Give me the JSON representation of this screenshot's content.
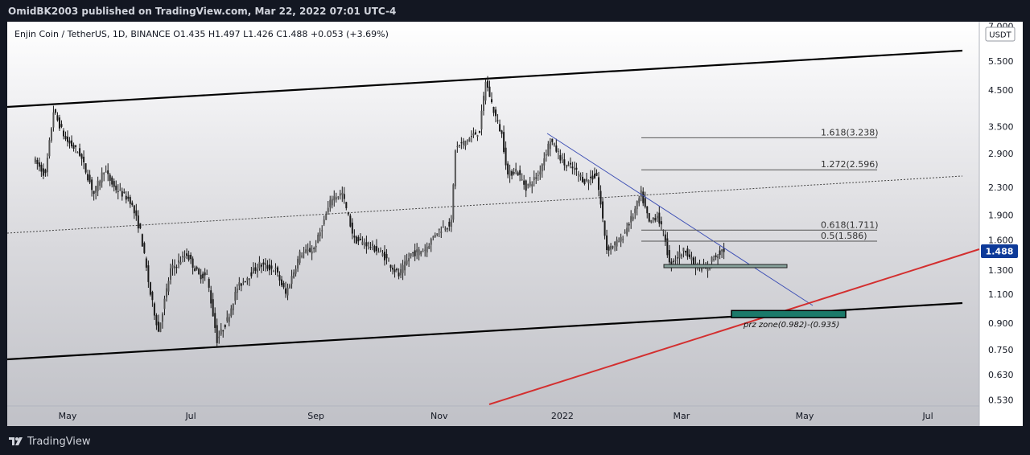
{
  "header": {
    "text": "OmidBK2003 published on TradingView.com, Mar 22, 2022 07:01 UTC-4"
  },
  "footer": {
    "brand": "TradingView"
  },
  "legend": {
    "text": "Enjin Coin / TetherUS, 1D, BINANCE  O1.435  H1.497  L1.426  C1.488  +0.053 (+3.69%)"
  },
  "price_axis": {
    "currency": "USDT",
    "last_price": "1.488"
  },
  "colors": {
    "candle": "#1a1a1a",
    "channel": "#000000",
    "trendline_blue": "#3f51b5",
    "trendline_red": "#d32f2f",
    "zone_green": "#1b7a6a",
    "zone_gray": "#86a09a",
    "last_price_bg": "#0d3a99"
  },
  "chart_data": {
    "type": "candlestick",
    "title": "Enjin Coin / TetherUS, 1D, BINANCE",
    "x_axis_labels": [
      "May",
      "Jul",
      "Sep",
      "Nov",
      "2022",
      "Mar",
      "May",
      "Jul"
    ],
    "y_scale": "log",
    "y_axis_ticks": [
      "7.000",
      "5.500",
      "4.500",
      "3.500",
      "2.900",
      "2.300",
      "1.900",
      "1.600",
      "1.300",
      "1.100",
      "0.900",
      "0.750",
      "0.630",
      "0.530"
    ],
    "ohlc_last": {
      "open": 1.435,
      "high": 1.497,
      "low": 1.426,
      "close": 1.488,
      "change": 0.053,
      "change_pct": 3.69
    },
    "price_anchors": [
      [
        "2021-04-15",
        2.8
      ],
      [
        "2021-04-21",
        2.5
      ],
      [
        "2021-04-25",
        3.9
      ],
      [
        "2021-05-01",
        3.2
      ],
      [
        "2021-05-08",
        2.9
      ],
      [
        "2021-05-15",
        2.2
      ],
      [
        "2021-05-20",
        2.6
      ],
      [
        "2021-05-25",
        2.3
      ],
      [
        "2021-06-02",
        2.1
      ],
      [
        "2021-06-07",
        1.7
      ],
      [
        "2021-06-12",
        1.1
      ],
      [
        "2021-06-16",
        0.85
      ],
      [
        "2021-06-22",
        1.3
      ],
      [
        "2021-06-30",
        1.45
      ],
      [
        "2021-07-06",
        1.25
      ],
      [
        "2021-07-10",
        1.25
      ],
      [
        "2021-07-15",
        0.8
      ],
      [
        "2021-07-20",
        0.92
      ],
      [
        "2021-07-25",
        1.15
      ],
      [
        "2021-08-05",
        1.35
      ],
      [
        "2021-08-13",
        1.3
      ],
      [
        "2021-08-18",
        1.1
      ],
      [
        "2021-08-25",
        1.45
      ],
      [
        "2021-09-01",
        1.5
      ],
      [
        "2021-09-05",
        1.75
      ],
      [
        "2021-09-10",
        2.15
      ],
      [
        "2021-09-15",
        2.2
      ],
      [
        "2021-09-21",
        1.6
      ],
      [
        "2021-09-28",
        1.55
      ],
      [
        "2021-10-05",
        1.45
      ],
      [
        "2021-10-13",
        1.25
      ],
      [
        "2021-10-19",
        1.45
      ],
      [
        "2021-10-26",
        1.5
      ],
      [
        "2021-11-01",
        1.7
      ],
      [
        "2021-11-08",
        1.8
      ],
      [
        "2021-11-10",
        3.0
      ],
      [
        "2021-11-16",
        3.2
      ],
      [
        "2021-11-22",
        3.4
      ],
      [
        "2021-11-25",
        4.8
      ],
      [
        "2021-11-29",
        3.9
      ],
      [
        "2021-12-03",
        3.3
      ],
      [
        "2021-12-06",
        2.5
      ],
      [
        "2021-12-10",
        2.6
      ],
      [
        "2021-12-15",
        2.3
      ],
      [
        "2021-12-21",
        2.5
      ],
      [
        "2021-12-27",
        3.2
      ],
      [
        "2022-01-03",
        2.7
      ],
      [
        "2022-01-08",
        2.6
      ],
      [
        "2022-01-13",
        2.4
      ],
      [
        "2022-01-19",
        2.5
      ],
      [
        "2022-01-24",
        1.5
      ],
      [
        "2022-01-31",
        1.6
      ],
      [
        "2022-02-06",
        1.9
      ],
      [
        "2022-02-10",
        2.2
      ],
      [
        "2022-02-14",
        1.8
      ],
      [
        "2022-02-18",
        1.9
      ],
      [
        "2022-02-22",
        1.6
      ],
      [
        "2022-02-24",
        1.35
      ],
      [
        "2022-03-01",
        1.45
      ],
      [
        "2022-03-04",
        1.5
      ],
      [
        "2022-03-08",
        1.35
      ],
      [
        "2022-03-14",
        1.3
      ],
      [
        "2022-03-17",
        1.4
      ],
      [
        "2022-03-22",
        1.488
      ]
    ],
    "annotations": {
      "fib_levels": [
        {
          "label": "1.618(3.238)",
          "value": 3.238
        },
        {
          "label": "1.272(2.596)",
          "value": 2.596
        },
        {
          "label": "0.618(1.711)",
          "value": 1.711
        },
        {
          "label": "0.5(1.586)",
          "value": 1.586
        }
      ],
      "prz_zone": {
        "label": "prz zone(0.982)-(0.935)",
        "top": 0.982,
        "bottom": 0.935
      },
      "support_zone": {
        "top": 1.35,
        "bottom": 1.32
      }
    }
  }
}
